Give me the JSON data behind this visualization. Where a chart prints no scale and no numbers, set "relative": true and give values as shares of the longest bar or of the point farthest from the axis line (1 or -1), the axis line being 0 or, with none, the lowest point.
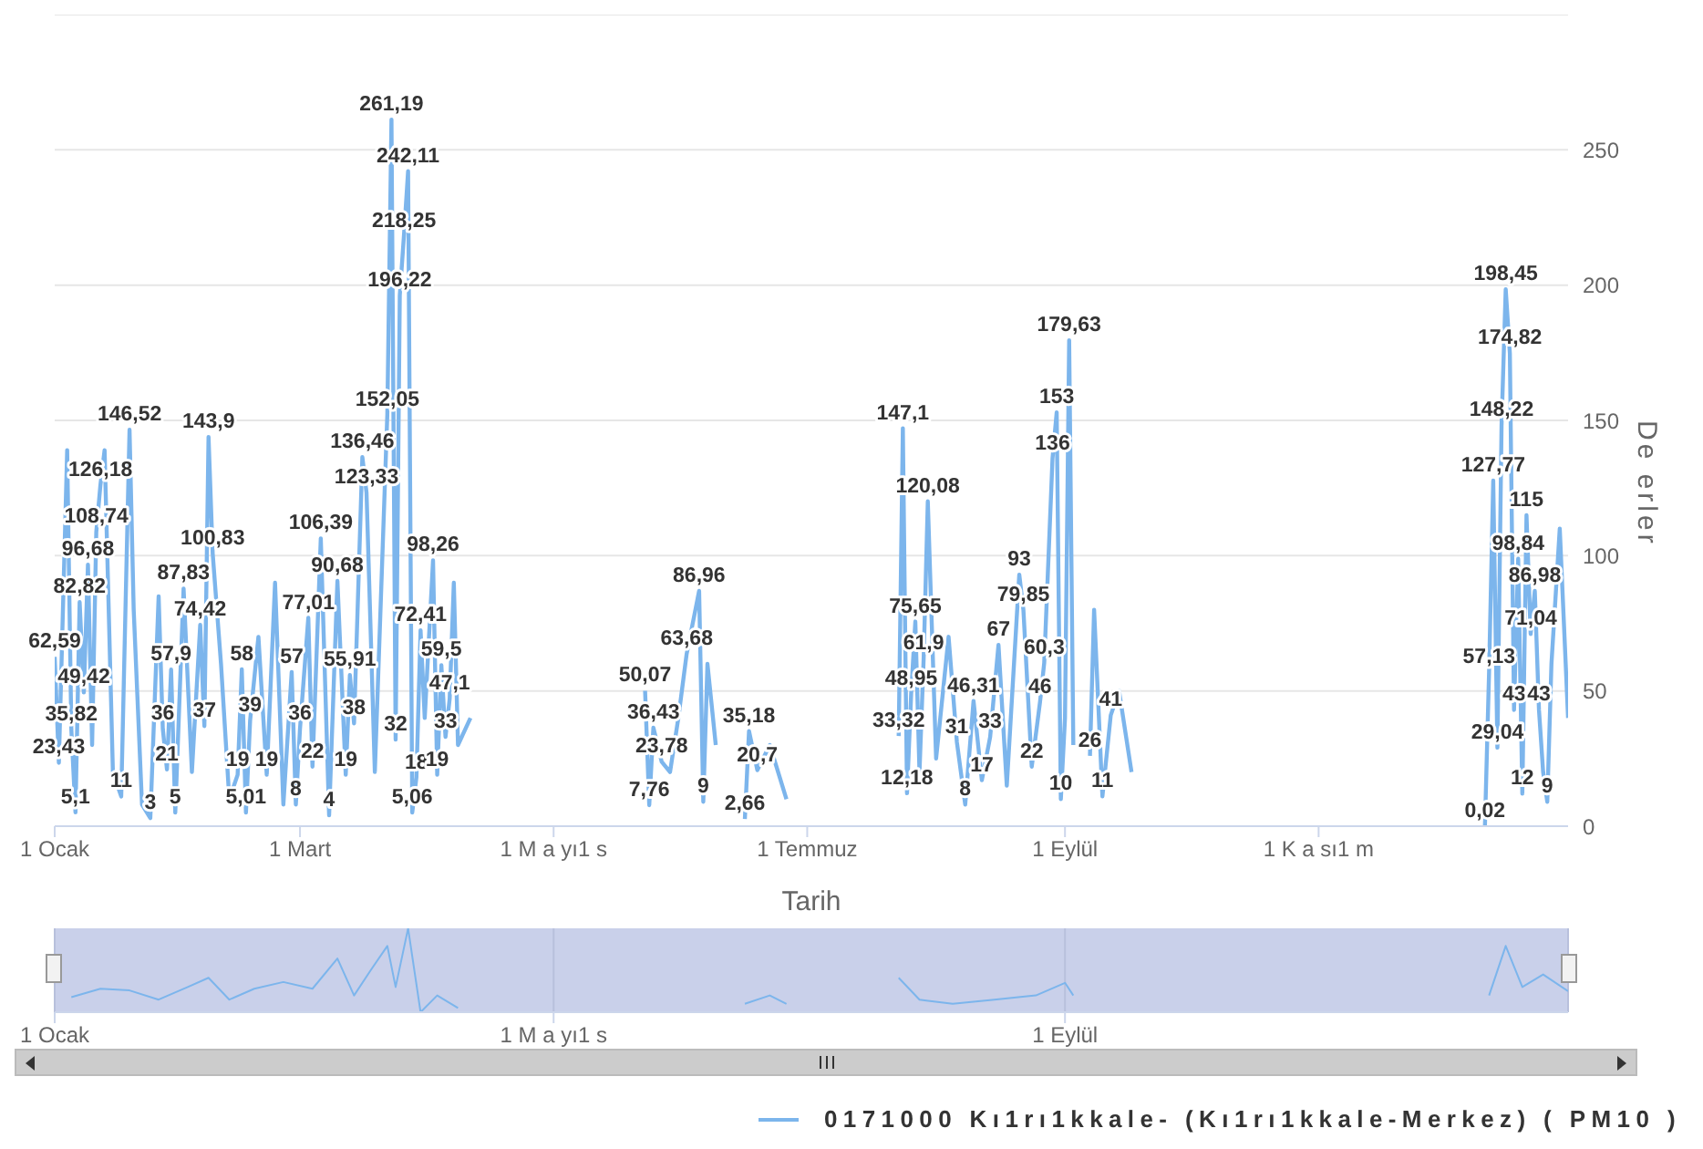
{
  "chart_data": [
    {
      "type": "line",
      "xlabel": "Tarih",
      "ylabel": "De erler",
      "grid": "y",
      "legend": "bottom",
      "series": [
        {
          "name": "0171000 Kı1rı1kkale- (Kı1rı1kkale-Merkez) ( PM10 )",
          "color": "#7cb5ec",
          "values": [
            62.59,
            23.43,
            139,
            35.82,
            5.1,
            82.82,
            49.42,
            96.68,
            30,
            108.74,
            126.18,
            139,
            20,
            11,
            146.52,
            80,
            8,
            3,
            85,
            36,
            21,
            57.9,
            5,
            87.83,
            20,
            74.42,
            37,
            143.9,
            100.83,
            60,
            10,
            19,
            58,
            5.01,
            39,
            70,
            19,
            90,
            8,
            57,
            8,
            36,
            77.01,
            22,
            106.39,
            4,
            90.68,
            19,
            55.91,
            38,
            136.46,
            123.33,
            20,
            152.05,
            261.19,
            32,
            196.22,
            218.25,
            242.11,
            5.06,
            18,
            72.41,
            40,
            98.26,
            19,
            59.5,
            33,
            47.1,
            90,
            30,
            40,
            null,
            50.07,
            7.76,
            36.43,
            23.78,
            20,
            40,
            63.68,
            86.96,
            9,
            60,
            30,
            null,
            2.66,
            35.18,
            20.7,
            30,
            10,
            null,
            33.32,
            147.1,
            12.18,
            48.95,
            75.65,
            20,
            61.9,
            120.08,
            25,
            70,
            31,
            8,
            46.31,
            17,
            33,
            67,
            15,
            93,
            79.85,
            22,
            46,
            60.3,
            136,
            153,
            10,
            40,
            179.63,
            30,
            null,
            26,
            80,
            11,
            41,
            50,
            20,
            null,
            0.02,
            57.13,
            127.77,
            29.04,
            148.22,
            198.45,
            174.82,
            43,
            98.84,
            12,
            115,
            71.04,
            86.98,
            43,
            20,
            9,
            60,
            110,
            40
          ]
        }
      ],
      "x": [
        "--01-01",
        "--01-02",
        "--01-04",
        "--01-05",
        "--01-06",
        "--01-07",
        "--01-08",
        "--01-09",
        "--01-10",
        "--01-11",
        "--01-12",
        "--01-13",
        "--01-15",
        "--01-17",
        "--01-19",
        "--01-20",
        "--01-22",
        "--01-24",
        "--01-26",
        "--01-27",
        "--01-28",
        "--01-29",
        "--01-30",
        "--02-01",
        "--02-03",
        "--02-05",
        "--02-06",
        "--02-07",
        "--02-08",
        "--02-10",
        "--02-12",
        "--02-14",
        "--02-15",
        "--02-16",
        "--02-17",
        "--02-19",
        "--02-21",
        "--02-23",
        "--02-25",
        "--02-27",
        "--02-28",
        "--03-01",
        "--03-03",
        "--03-04",
        "--03-06",
        "--03-08",
        "--03-10",
        "--03-12",
        "--03-13",
        "--03-14",
        "--03-16",
        "--03-17",
        "--03-19",
        "--03-22",
        "--03-23",
        "--03-24",
        "--03-25",
        "--03-26",
        "--03-27",
        "--03-28",
        "--03-29",
        "--03-30",
        "--03-31",
        "--04-02",
        "--04-03",
        "--04-04",
        "--04-05",
        "--04-06",
        "--04-07",
        "--04-08",
        "--04-11",
        "--05-01",
        "--05-23",
        "--05-24",
        "--05-25",
        "--05-27",
        "--05-29",
        "--05-31",
        "--06-02",
        "--06-05",
        "--06-06",
        "--06-07",
        "--06-09",
        "--06-13",
        "--06-16",
        "--06-17",
        "--06-19",
        "--06-22",
        "--06-26",
        "--07-10",
        "--07-23",
        "--07-24",
        "--07-25",
        "--07-26",
        "--07-27",
        "--07-28",
        "--07-29",
        "--07-30",
        "--08-01",
        "--08-04",
        "--08-06",
        "--08-08",
        "--08-10",
        "--08-12",
        "--08-14",
        "--08-16",
        "--08-18",
        "--08-21",
        "--08-22",
        "--08-24",
        "--08-26",
        "--08-27",
        "--08-29",
        "--08-30",
        "--08-31",
        "--09-01",
        "--09-02",
        "--09-03",
        "--09-04",
        "--09-07",
        "--09-08",
        "--09-10",
        "--09-12",
        "--09-14",
        "--09-17",
        "--10-15",
        "--12-11",
        "--12-12",
        "--12-13",
        "--12-14",
        "--12-15",
        "--12-16",
        "--12-17",
        "--12-18",
        "--12-19",
        "--12-20",
        "--12-21",
        "--12-22",
        "--12-23",
        "--12-24",
        "--12-25",
        "--12-26",
        "--12-27",
        "--12-29",
        "--12-31"
      ],
      "value_labels": [
        "62,59",
        "23,43",
        null,
        "35,82",
        "5,1",
        "82,82",
        "49,42",
        "96,68",
        null,
        "108,74",
        "126,18",
        null,
        null,
        "11",
        "146,52",
        null,
        null,
        "3",
        null,
        "36",
        "21",
        "57,9",
        "5",
        "87,83",
        null,
        "74,42",
        "37",
        "143,9",
        "100,83",
        null,
        null,
        "19",
        "58",
        "5,01",
        "39",
        null,
        "19",
        null,
        null,
        "57",
        "8",
        "36",
        "77,01",
        "22",
        "106,39",
        "4",
        "90,68",
        "19",
        "55,91",
        "38",
        "136,46",
        "123,33",
        null,
        "152,05",
        "261,19",
        "32",
        "196,22",
        "218,25",
        "242,11",
        "5,06",
        "18",
        "72,41",
        null,
        "98,26",
        "19",
        "59,5",
        "33",
        "47,1",
        null,
        null,
        null,
        null,
        "50,07",
        "7,76",
        "36,43",
        "23,78",
        null,
        null,
        "63,68",
        "86,96",
        "9",
        null,
        null,
        null,
        "2,66",
        "35,18",
        "20,7",
        null,
        null,
        null,
        "33,32",
        "147,1",
        "12,18",
        "48,95",
        "75,65",
        null,
        "61,9",
        "120,08",
        null,
        null,
        "31",
        "8",
        "46,31",
        "17",
        "33",
        "67",
        null,
        "93",
        "79,85",
        "22",
        "46",
        "60,3",
        "136",
        "153",
        "10",
        null,
        "179,63",
        null,
        null,
        "26",
        null,
        "11",
        "41",
        null,
        null,
        null,
        "0,02",
        "57,13",
        "127,77",
        "29,04",
        "148,22",
        "198,45",
        "174,82",
        "43",
        "98,84",
        "12",
        "115",
        "71,04",
        "86,98",
        "43",
        null,
        "9",
        null,
        null,
        null
      ],
      "xlim": [
        "--01-01",
        "--12-31"
      ],
      "xticks": [
        {
          "value": "--01-01",
          "label": "1 Ocak"
        },
        {
          "value": "--03-01",
          "label": "1 Mart"
        },
        {
          "value": "--05-01",
          "label": "1 M a yı1 s"
        },
        {
          "value": "--07-01",
          "label": "1 Temmuz"
        },
        {
          "value": "--09-01",
          "label": "1 Eylül"
        },
        {
          "value": "--11-01",
          "label": "1 K a sı1 m"
        }
      ],
      "ylim": [
        0,
        300
      ],
      "yticks": [
        0,
        50,
        100,
        150,
        200,
        250,
        {
          "value": 300,
          "label": null
        }
      ]
    },
    {
      "type": "line",
      "relative": true,
      "color": "#7cb5ec",
      "grid": "x",
      "tick_labels": "x",
      "x": [
        "--01-05",
        "--01-12",
        "--01-19",
        "--01-26",
        "--02-02",
        "--02-07",
        "--02-12",
        "--02-18",
        "--02-25",
        "--03-04",
        "--03-10",
        "--03-14",
        "--03-18",
        "--03-22",
        "--03-24",
        "--03-27",
        "--03-30",
        "--04-03",
        "--04-08",
        "--05-01",
        "--06-16",
        "--06-22",
        "--06-26",
        "--07-10",
        "--07-23",
        "--07-28",
        "--08-05",
        "--08-15",
        "--08-25",
        "--09-01",
        "--09-03",
        "--10-15",
        "--12-12",
        "--12-16",
        "--12-20",
        "--12-25",
        "--12-31"
      ],
      "values": [
        0.18,
        0.28,
        0.26,
        0.15,
        0.3,
        0.41,
        0.15,
        0.28,
        0.36,
        0.28,
        0.64,
        0.2,
        0.5,
        0.79,
        0.3,
        1,
        0,
        0.2,
        0.05,
        null,
        0.1,
        0.2,
        0.1,
        null,
        0.41,
        0.15,
        0.1,
        0.15,
        0.2,
        0.35,
        0.2,
        null,
        0.2,
        0.79,
        0.3,
        0.45,
        0.25
      ],
      "xlim": [
        "--01-01",
        "--12-31"
      ],
      "xticks": [
        {
          "value": "--01-01",
          "label": "1 Ocak"
        },
        {
          "value": "--05-01",
          "label": "1 M a yı1 s"
        },
        {
          "value": "--09-01",
          "label": "1 Eylül"
        }
      ]
    }
  ]
}
